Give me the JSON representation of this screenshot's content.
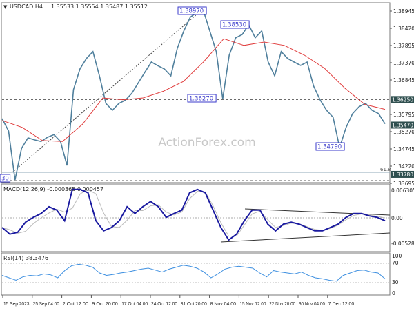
{
  "header": {
    "symbol": "USDCAD,H4",
    "ohlc": "1.35533 1.35554 1.35487 1.35512"
  },
  "watermark": "ActionForex.com",
  "colors": {
    "price": "#4f7f9c",
    "sma": "#e03c3c",
    "macd": "#1a1aa0",
    "signal": "#bbbbbb",
    "rsi": "#3d8fe0",
    "label_box": "#3a3acb",
    "axis_tag": "#2f4f4f"
  },
  "chart_data": [
    {
      "type": "line",
      "title": "USDCAD,H4",
      "x_ticks": [
        "15 Sep 2023",
        "25 Sep 04:00",
        "2 Oct 12:00",
        "9 Oct 20:00",
        "17 Oct 04:00",
        "24 Oct 12:00",
        "31 Oct 20:00",
        "8 Nov 04:00",
        "15 Nov 12:00",
        "22 Nov 20:00",
        "30 Nov 04:00",
        "7 Dec 12:00"
      ],
      "y_ticks": [
        "1.38945",
        "1.38420",
        "1.37895",
        "1.37370",
        "1.36845",
        "1.35795",
        "1.35270",
        "1.34745",
        "1.34220",
        "1.33695"
      ],
      "ylim": [
        1.3366,
        1.3925
      ],
      "series": [
        {
          "values": [
            1.3567,
            1.3529,
            1.338,
            1.3476,
            1.3508,
            1.3502,
            1.3497,
            1.351,
            1.3518,
            1.3497,
            1.3424,
            1.3655,
            1.3718,
            1.375,
            1.3771,
            1.3697,
            1.3613,
            1.3592,
            1.3613,
            1.3623,
            1.3644,
            1.3676,
            1.3708,
            1.3739,
            1.3728,
            1.3718,
            1.3697,
            1.3781,
            1.3834,
            1.3876,
            1.389,
            1.3897,
            1.3834,
            1.3771,
            1.3627,
            1.376,
            1.3813,
            1.3823,
            1.3853,
            1.3813,
            1.3834,
            1.3739,
            1.3697,
            1.3771,
            1.375,
            1.3739,
            1.3729,
            1.3739,
            1.3666,
            1.3624,
            1.3592,
            1.3571,
            1.3479,
            1.354,
            1.3582,
            1.3603,
            1.3613,
            1.3592,
            1.3582,
            1.3551
          ]
        },
        {
          "values": [
            1.3561,
            1.354,
            1.35,
            1.3497,
            1.355,
            1.363,
            1.3624,
            1.363,
            1.365,
            1.368,
            1.374,
            1.381,
            1.379,
            1.38,
            1.379,
            1.376,
            1.372,
            1.366,
            1.361,
            1.3595
          ]
        }
      ],
      "levels": [
        {
          "label": "1.36250",
          "value": 1.3625
        },
        {
          "label": "1.35470",
          "value": 1.3547
        },
        {
          "label": "1.33780",
          "value": 1.3378
        }
      ],
      "fib_label": "61.8",
      "swing_labels": [
        {
          "label": "1.38970",
          "value": 1.3897
        },
        {
          "label": "1.38530",
          "value": 1.3853
        },
        {
          "label": "1.36270",
          "value": 1.3627
        },
        {
          "label": "1.34790",
          "value": 1.3479
        },
        {
          "label": "30",
          "value": 1.338
        }
      ]
    },
    {
      "type": "line",
      "title": "MACD(12,26,9) -0.000365 0.000457",
      "y_ticks": [
        "0.006305",
        "0.00",
        "-0.005283"
      ],
      "ylim": [
        -0.005283,
        0.006305
      ],
      "series": [
        {
          "values": [
            -0.002,
            -0.0034,
            -0.003,
            -0.0009,
            0.0001,
            0.0009,
            0.0023,
            0.0016,
            -0.0006,
            0.0059,
            0.0059,
            0.0052,
            -0.0006,
            -0.0027,
            -0.002,
            -0.0006,
            0.0023,
            0.0009,
            0.0023,
            0.0034,
            0.0023,
            0.0001,
            0.0009,
            0.0016,
            0.0052,
            0.0059,
            0.0052,
            0.0016,
            -0.002,
            -0.0046,
            -0.0034,
            -0.0006,
            0.0016,
            0.0016,
            -0.0013,
            -0.0027,
            -0.0013,
            -0.0009,
            -0.0013,
            -0.002,
            -0.0027,
            -0.0027,
            -0.002,
            -0.0013,
            0.0001,
            0.0009,
            0.0009,
            0.0004,
            0.0001,
            -0.0006
          ]
        },
        {
          "values": [
            -0.002,
            -0.0025,
            -0.0032,
            -0.0028,
            -0.0012,
            0.0,
            0.001,
            0.0018,
            0.0012,
            0.002,
            0.005,
            0.0058,
            0.005,
            0.001,
            -0.0018,
            -0.002,
            -0.0005,
            0.0015,
            0.0015,
            0.0025,
            0.0027,
            0.0012,
            0.0006,
            0.0012,
            0.004,
            0.0055,
            0.0054,
            0.0025,
            -0.001,
            -0.0038,
            -0.0038,
            -0.0015,
            0.0008,
            0.0014,
            -0.0004,
            -0.002,
            -0.0016,
            -0.0011,
            -0.0012,
            -0.0018,
            -0.0024,
            -0.0026,
            -0.0022,
            -0.0015,
            -0.0004,
            0.0005,
            0.0008,
            0.0006,
            0.0003,
            0.0
          ]
        }
      ]
    },
    {
      "type": "line",
      "title": "RSI(14) 38.3476",
      "y_ticks": [
        "100",
        "70",
        "30",
        "0"
      ],
      "ylim": [
        0,
        100
      ],
      "series": [
        {
          "values": [
            45,
            40,
            35,
            42,
            45,
            44,
            48,
            46,
            40,
            55,
            65,
            68,
            66,
            62,
            50,
            45,
            47,
            50,
            52,
            55,
            58,
            60,
            56,
            52,
            58,
            62,
            66,
            64,
            60,
            52,
            40,
            48,
            58,
            62,
            64,
            62,
            60,
            50,
            42,
            55,
            52,
            50,
            48,
            52,
            45,
            40,
            38,
            35,
            33,
            45,
            50,
            55,
            56,
            52,
            50,
            38
          ]
        }
      ]
    }
  ]
}
